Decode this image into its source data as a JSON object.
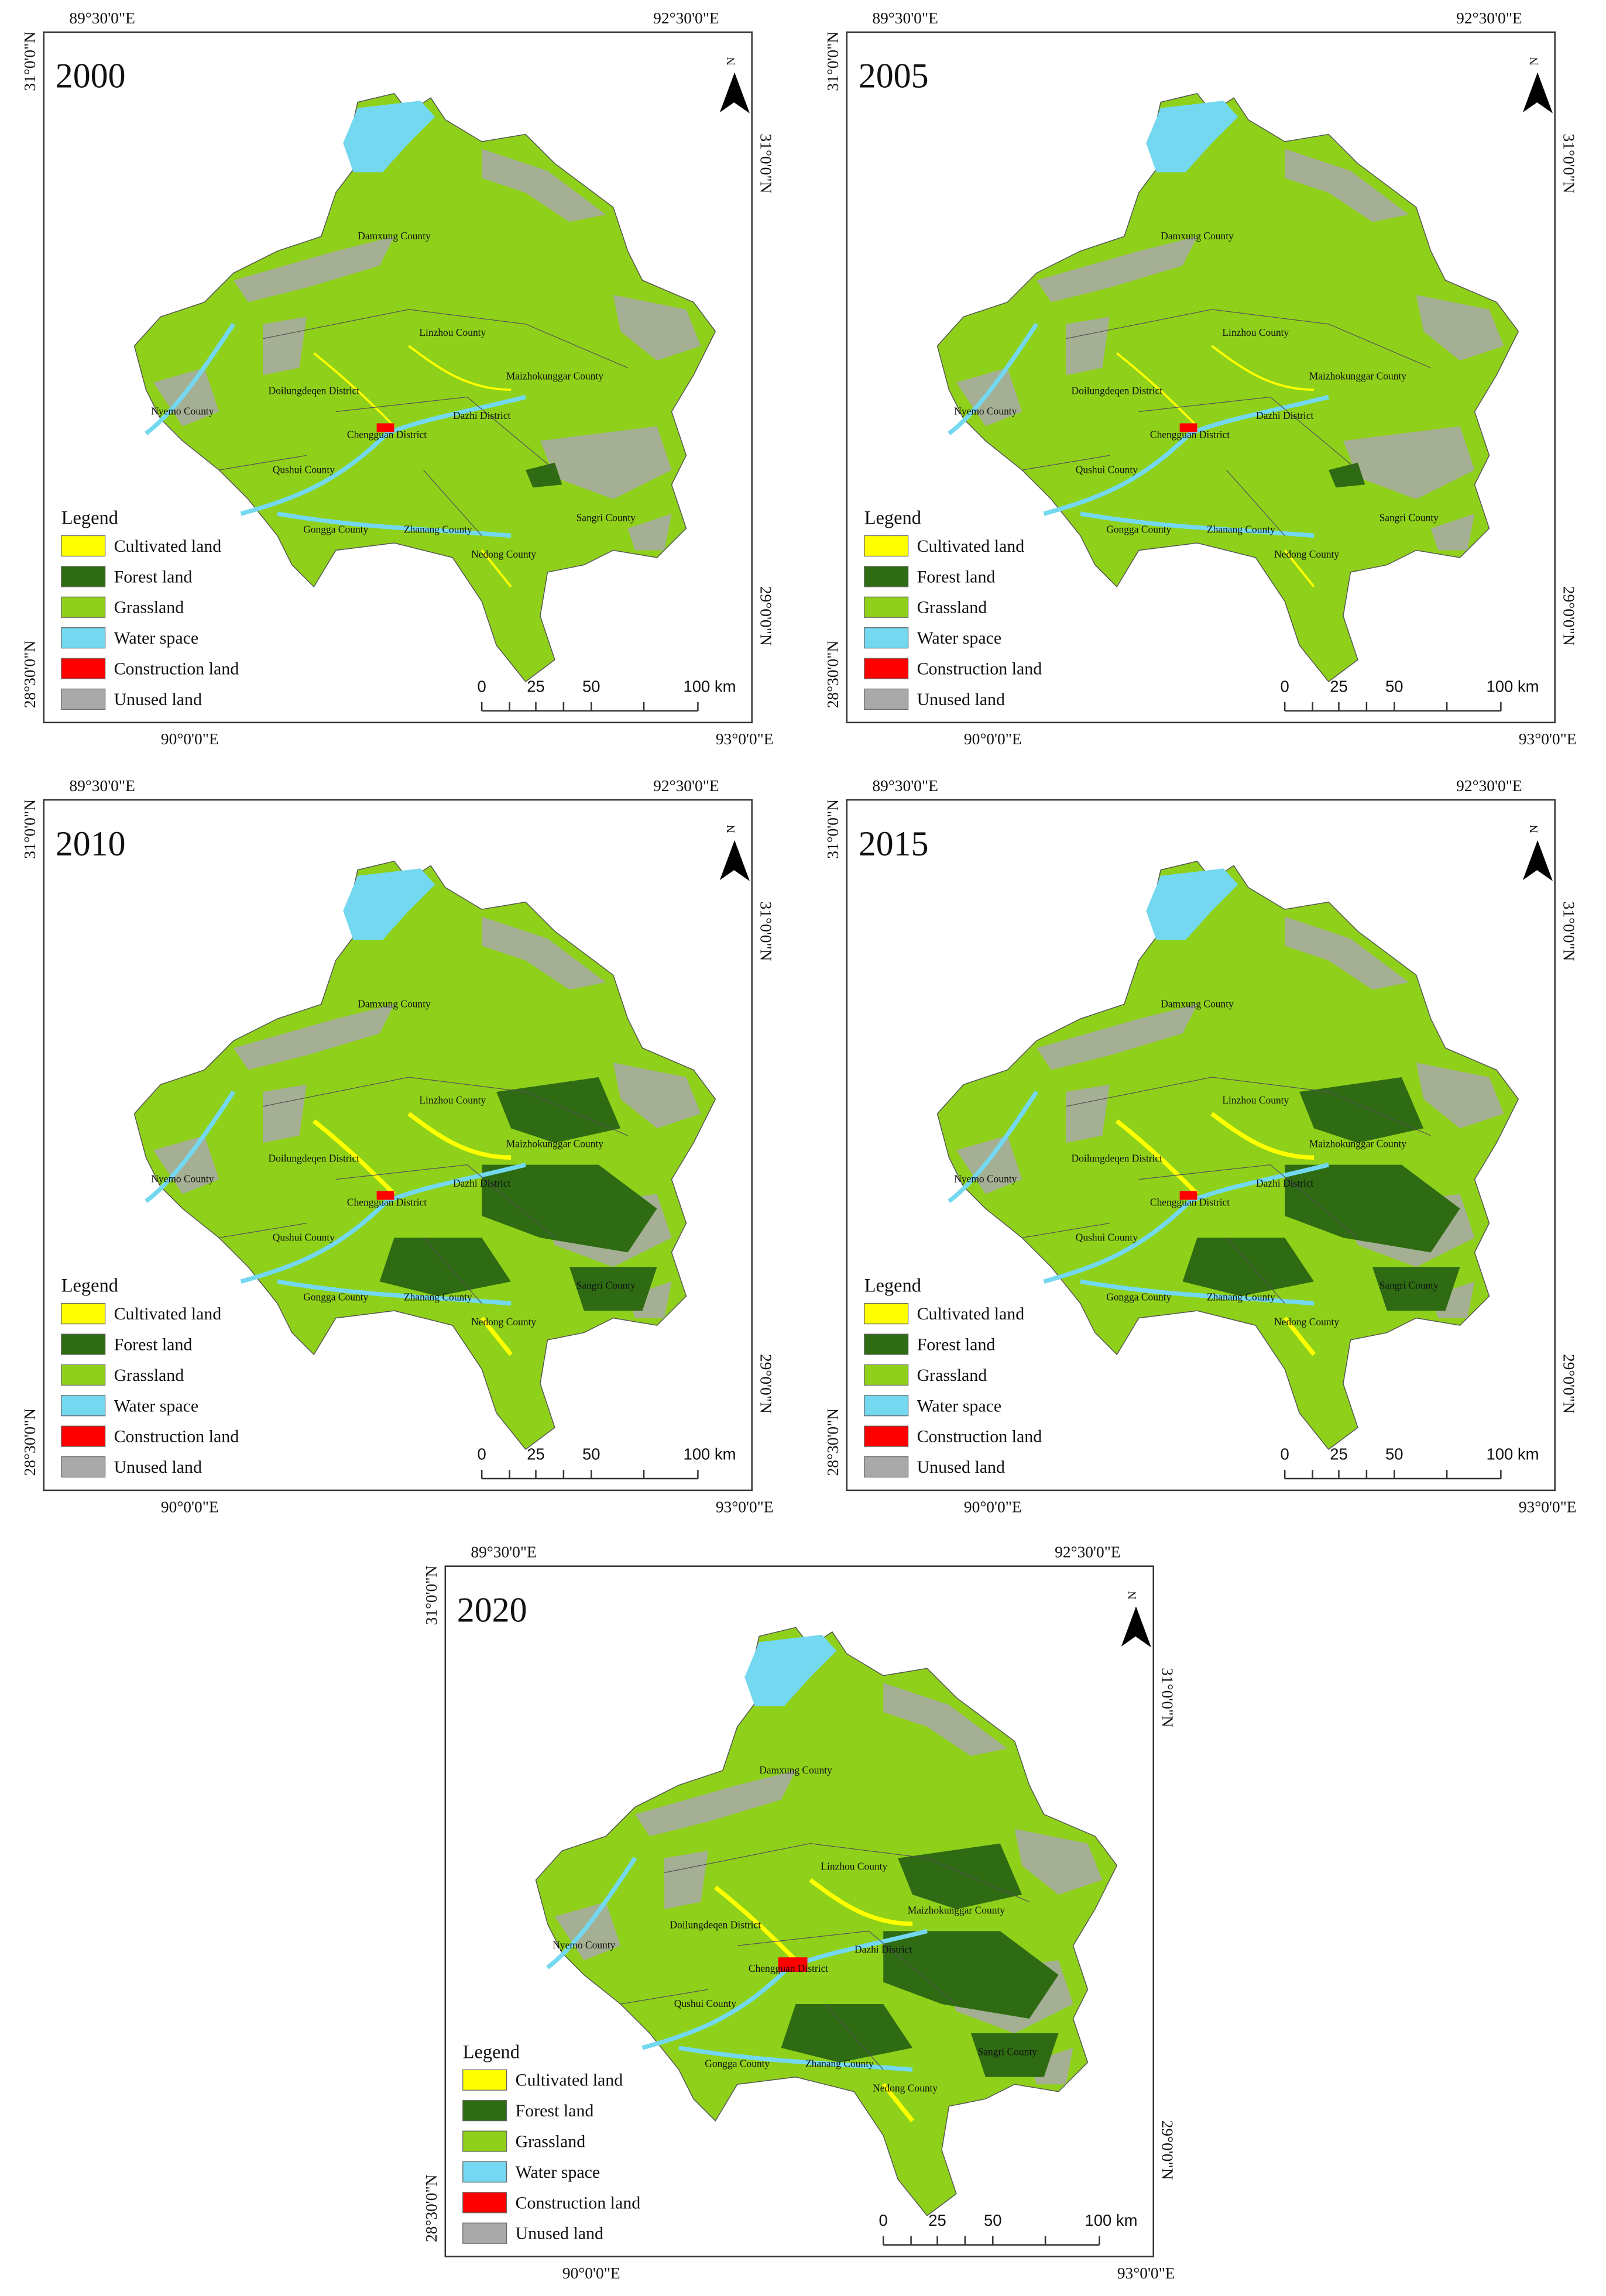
{
  "coordinates": {
    "top": [
      "89°30'0\"E",
      "92°30'0\"E"
    ],
    "bottom": [
      "90°0'0\"E",
      "93°0'0\"E"
    ],
    "left": [
      "31°0'0\"N",
      "28°30'0\"N"
    ],
    "right": [
      "31°0'0\"N",
      "29°0'0\"N"
    ]
  },
  "north": "N",
  "legend": {
    "title": "Legend",
    "items": [
      {
        "label": "Cultivated land",
        "color": "#ffff00"
      },
      {
        "label": "Forest land",
        "color": "#2e6b12"
      },
      {
        "label": "Grassland",
        "color": "#8fd11a"
      },
      {
        "label": "Water space",
        "color": "#73d8f0"
      },
      {
        "label": "Construction land",
        "color": "#ff0000"
      },
      {
        "label": "Unused land",
        "color": "#a9a9a9"
      }
    ]
  },
  "scale_bar": [
    "0",
    "25",
    "50",
    "100 km"
  ],
  "places": [
    "Damxung County",
    "Linzhou County",
    "Doilungdeqen District",
    "Maizhokunggar County",
    "Nyemo County",
    "Chengguan District",
    "Dazhi District",
    "Qushui County",
    "Gongga County",
    "Zhanang County",
    "Sangri County",
    "Nedong County"
  ],
  "panels": [
    {
      "year": "2000"
    },
    {
      "year": "2005"
    },
    {
      "year": "2010"
    },
    {
      "year": "2015"
    },
    {
      "year": "2020"
    }
  ]
}
